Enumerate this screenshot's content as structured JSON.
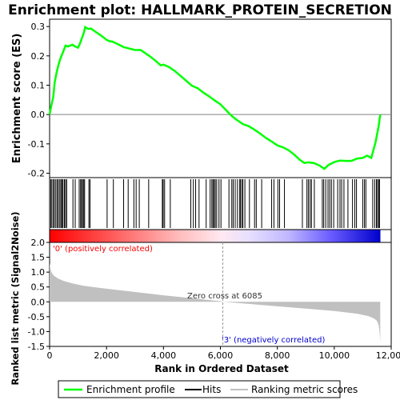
{
  "chart_data": {
    "type": "line",
    "title": "Enrichment plot: HALLMARK_PROTEIN_SECRETION",
    "es_panel": {
      "ylabel": "Enrichment score (ES)",
      "ylim": [
        -0.215,
        0.325
      ],
      "yticks": [
        "0.3",
        "0.2",
        "0.1",
        "0.0",
        "-0.1",
        "-0.2"
      ],
      "ytick_values": [
        0.3,
        0.2,
        0.1,
        0.0,
        -0.1,
        -0.2
      ],
      "line_color": "#00ff00",
      "points": [
        [
          0,
          0.0
        ],
        [
          60,
          0.03
        ],
        [
          130,
          0.06
        ],
        [
          180,
          0.11
        ],
        [
          240,
          0.14
        ],
        [
          300,
          0.165
        ],
        [
          360,
          0.185
        ],
        [
          420,
          0.2
        ],
        [
          480,
          0.215
        ],
        [
          560,
          0.235
        ],
        [
          640,
          0.232
        ],
        [
          800,
          0.238
        ],
        [
          900,
          0.232
        ],
        [
          1000,
          0.228
        ],
        [
          1080,
          0.245
        ],
        [
          1140,
          0.262
        ],
        [
          1200,
          0.278
        ],
        [
          1250,
          0.298
        ],
        [
          1350,
          0.292
        ],
        [
          1450,
          0.293
        ],
        [
          1600,
          0.283
        ],
        [
          1800,
          0.27
        ],
        [
          2000,
          0.255
        ],
        [
          2100,
          0.25
        ],
        [
          2200,
          0.249
        ],
        [
          2400,
          0.24
        ],
        [
          2600,
          0.23
        ],
        [
          2800,
          0.225
        ],
        [
          3000,
          0.22
        ],
        [
          3200,
          0.22
        ],
        [
          3500,
          0.2
        ],
        [
          3700,
          0.185
        ],
        [
          3900,
          0.168
        ],
        [
          4000,
          0.17
        ],
        [
          4200,
          0.162
        ],
        [
          4400,
          0.148
        ],
        [
          4600,
          0.132
        ],
        [
          4800,
          0.115
        ],
        [
          5000,
          0.098
        ],
        [
          5200,
          0.09
        ],
        [
          5400,
          0.075
        ],
        [
          5600,
          0.062
        ],
        [
          5800,
          0.048
        ],
        [
          6000,
          0.035
        ],
        [
          6200,
          0.015
        ],
        [
          6400,
          -0.005
        ],
        [
          6600,
          -0.02
        ],
        [
          6800,
          -0.033
        ],
        [
          7000,
          -0.04
        ],
        [
          7200,
          -0.052
        ],
        [
          7400,
          -0.065
        ],
        [
          7600,
          -0.08
        ],
        [
          7800,
          -0.092
        ],
        [
          8000,
          -0.105
        ],
        [
          8200,
          -0.112
        ],
        [
          8400,
          -0.122
        ],
        [
          8600,
          -0.137
        ],
        [
          8800,
          -0.155
        ],
        [
          8950,
          -0.165
        ],
        [
          9100,
          -0.163
        ],
        [
          9300,
          -0.166
        ],
        [
          9500,
          -0.175
        ],
        [
          9650,
          -0.185
        ],
        [
          9800,
          -0.172
        ],
        [
          10000,
          -0.162
        ],
        [
          10200,
          -0.157
        ],
        [
          10400,
          -0.158
        ],
        [
          10600,
          -0.158
        ],
        [
          10800,
          -0.15
        ],
        [
          11000,
          -0.148
        ],
        [
          11150,
          -0.14
        ],
        [
          11300,
          -0.148
        ],
        [
          11380,
          -0.12
        ],
        [
          11450,
          -0.095
        ],
        [
          11500,
          -0.07
        ],
        [
          11560,
          -0.04
        ],
        [
          11600,
          -0.01
        ],
        [
          11620,
          0.0
        ]
      ]
    },
    "hits": [
      40,
      80,
      130,
      170,
      220,
      270,
      310,
      360,
      400,
      440,
      470,
      520,
      560,
      600,
      820,
      900,
      1040,
      1090,
      1120,
      1160,
      1200,
      1230,
      1380,
      1420,
      2020,
      2240,
      2600,
      2760,
      2960,
      3040,
      3150,
      3480,
      3960,
      3990,
      4040,
      4240,
      4960,
      5050,
      5130,
      5250,
      5500,
      5640,
      5700,
      5740,
      5780,
      5820,
      5870,
      5950,
      6020,
      6300,
      6400,
      6450,
      6520,
      6600,
      6680,
      6700,
      6750,
      6790,
      6860,
      7020,
      7200,
      7260,
      7450,
      7800,
      7880,
      8020,
      8080,
      8250,
      8880,
      9040,
      9090,
      9150,
      9200,
      9300,
      9580,
      9630,
      9700,
      9780,
      9840,
      9900,
      9980,
      10120,
      10200,
      10260,
      10340,
      10480,
      10640,
      10720,
      10780,
      11000,
      11060,
      11110,
      11350,
      11420,
      11480,
      11520,
      11560,
      11590
    ],
    "metric_panel": {
      "ylabel": "Ranked list metric (Signal2Noise)",
      "ylim": [
        -1.5,
        2.0
      ],
      "yticks": [
        "2.0",
        "1.5",
        "1.0",
        "0.5",
        "0.0",
        "-0.5",
        "-1.0",
        "-1.5"
      ],
      "ytick_values": [
        2.0,
        1.5,
        1.0,
        0.5,
        0.0,
        -0.5,
        -1.0,
        -1.5
      ],
      "fill_color": "#c0c0c0",
      "points": [
        [
          0,
          1.3
        ],
        [
          30,
          1.1
        ],
        [
          80,
          0.97
        ],
        [
          150,
          0.88
        ],
        [
          300,
          0.78
        ],
        [
          500,
          0.7
        ],
        [
          800,
          0.62
        ],
        [
          1200,
          0.54
        ],
        [
          1600,
          0.49
        ],
        [
          2000,
          0.44
        ],
        [
          3000,
          0.33
        ],
        [
          4000,
          0.22
        ],
        [
          5000,
          0.12
        ],
        [
          6000,
          0.02
        ],
        [
          6085,
          0.0
        ],
        [
          7000,
          -0.07
        ],
        [
          8000,
          -0.15
        ],
        [
          9000,
          -0.23
        ],
        [
          10000,
          -0.31
        ],
        [
          10800,
          -0.4
        ],
        [
          11200,
          -0.48
        ],
        [
          11400,
          -0.56
        ],
        [
          11500,
          -0.64
        ],
        [
          11560,
          -0.78
        ],
        [
          11590,
          -1.0
        ],
        [
          11615,
          -1.35
        ]
      ],
      "annotations": {
        "positive": "'0' (positively correlated)",
        "zero_cross": "Zero cross at 6085",
        "negative": "'3' (negatively correlated)"
      },
      "zero_cross_rank": 6085,
      "positive_color": "#ff0000",
      "negative_color": "#0000cc"
    },
    "xaxis": {
      "xlabel": "Rank in Ordered Dataset",
      "xlim": [
        0,
        12000
      ],
      "xticks": [
        "0",
        "2,000",
        "4,000",
        "6,000",
        "8,000",
        "10,000",
        "12,000"
      ],
      "xtick_values": [
        0,
        2000,
        4000,
        6000,
        8000,
        10000,
        12000
      ],
      "n_genes": 11620
    },
    "legend": {
      "enrichment_profile": "Enrichment profile",
      "hits": "Hits",
      "ranking_metric": "Ranking metric scores"
    }
  }
}
